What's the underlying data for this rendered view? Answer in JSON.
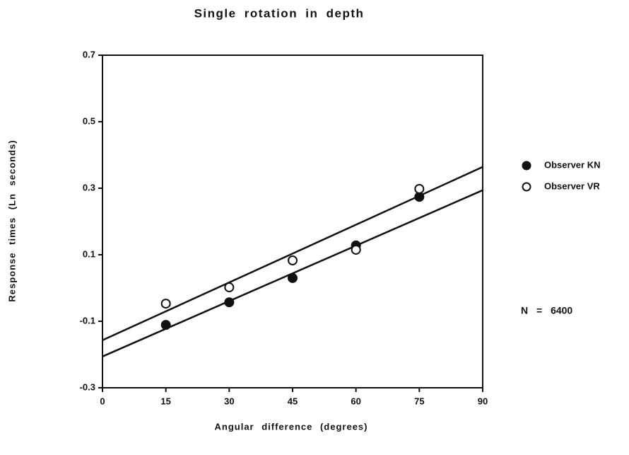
{
  "chart_data": {
    "type": "scatter",
    "title": "Single rotation in depth",
    "x_label": "Angular difference (degrees)",
    "y_label": "Response times (Ln seconds)",
    "annotation": "N = 6400",
    "xlim": [
      0,
      90
    ],
    "xticks": [
      0,
      15,
      30,
      45,
      60,
      75,
      90
    ],
    "ylim": [
      -0.3,
      0.7
    ],
    "yticks": [
      -0.3,
      -0.1,
      0.1,
      0.3,
      0.5,
      0.7
    ],
    "x": [
      15,
      30,
      45,
      60,
      75
    ],
    "legend": "right",
    "series": [
      {
        "name": "Observer KN",
        "color": "#111111",
        "filled": true,
        "values": [
          -0.111,
          -0.043,
          0.03,
          0.128,
          0.274
        ],
        "fit": [
          -0.206,
          0.294
        ]
      },
      {
        "name": "Observer VR",
        "color": "#111111",
        "filled": false,
        "values": [
          -0.047,
          0.002,
          0.083,
          0.115,
          0.298
        ],
        "fit": [
          -0.157,
          0.364
        ]
      }
    ]
  }
}
